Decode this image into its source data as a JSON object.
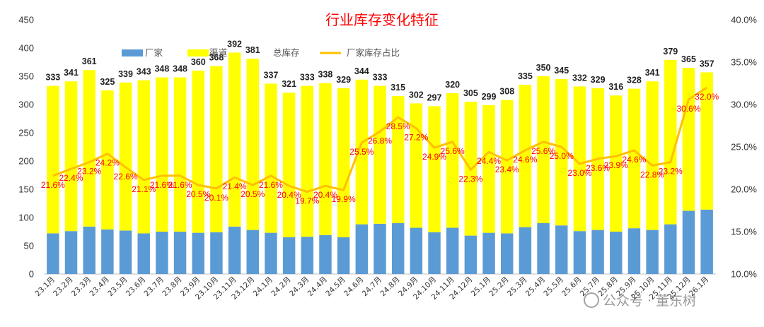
{
  "chart_data": {
    "type": "bar",
    "title": "行业库存变化特征",
    "categories": [
      "23.1月",
      "23.2月",
      "23.3月",
      "23.4月",
      "23.5月",
      "23.6月",
      "23.7月",
      "23.8月",
      "23.9月",
      "23.10月",
      "23.11月",
      "23.12月",
      "24.1月",
      "24.2月",
      "24.3月",
      "24.4月",
      "24.5月",
      "24.6月",
      "24.7月",
      "24.8月",
      "24.9月",
      "24.10月",
      "24.11月",
      "24.12月",
      "25.1月",
      "25.2月",
      "25.3月",
      "25.4月",
      "25.5月",
      "25.6月",
      "25.7月",
      "25.8月",
      "25.9月",
      "25.10月",
      "25.11月",
      "25.12月",
      "26.1月"
    ],
    "series": [
      {
        "name": "厂家",
        "type": "bar",
        "stack": "inventory",
        "color": "#5b9bd5",
        "values": [
          72,
          76,
          84,
          79,
          77,
          72,
          75,
          75,
          73,
          74,
          84,
          78,
          73,
          65,
          66,
          69,
          65,
          88,
          89,
          90,
          82,
          74,
          82,
          68,
          73,
          72,
          83,
          90,
          86,
          76,
          78,
          75,
          81,
          78,
          88,
          112,
          114
        ]
      },
      {
        "name": "渠道",
        "type": "bar",
        "stack": "inventory",
        "color": "#ffff00",
        "values": [
          261,
          265,
          277,
          246,
          262,
          271,
          273,
          273,
          287,
          294,
          308,
          303,
          264,
          256,
          267,
          269,
          264,
          256,
          244,
          225,
          220,
          223,
          238,
          237,
          226,
          236,
          252,
          260,
          259,
          256,
          251,
          241,
          247,
          263,
          291,
          253,
          243
        ]
      },
      {
        "name": "总库存",
        "type": "label",
        "color": "#222222",
        "values": [
          333,
          341,
          361,
          325,
          339,
          343,
          348,
          348,
          360,
          368,
          392,
          381,
          337,
          321,
          333,
          338,
          329,
          344,
          333,
          315,
          302,
          297,
          320,
          305,
          299,
          308,
          335,
          350,
          345,
          332,
          329,
          316,
          328,
          341,
          379,
          365,
          357
        ]
      },
      {
        "name": "厂家库存占比",
        "type": "line",
        "axis": "right",
        "unit": "%",
        "color": "#ffc000",
        "values": [
          21.6,
          22.4,
          23.2,
          24.2,
          22.6,
          21.1,
          21.6,
          21.6,
          20.5,
          20.1,
          21.4,
          20.5,
          21.6,
          20.4,
          19.7,
          20.4,
          19.9,
          25.5,
          26.8,
          28.5,
          27.2,
          24.9,
          25.6,
          22.3,
          24.4,
          23.4,
          24.6,
          25.6,
          25.0,
          23.0,
          23.6,
          23.9,
          24.6,
          22.8,
          23.2,
          30.6,
          32.0
        ]
      }
    ],
    "y_left": {
      "min": 0,
      "max": 450,
      "step": 50,
      "ticks": [
        "0",
        "50",
        "100",
        "150",
        "200",
        "250",
        "300",
        "350",
        "400",
        "450"
      ]
    },
    "y_right": {
      "min": 10,
      "max": 40,
      "step": 5,
      "ticks": [
        "10.0%",
        "15.0%",
        "20.0%",
        "25.0%",
        "30.0%",
        "35.0%",
        "40.0%"
      ]
    },
    "legend": {
      "placement": "top-center",
      "entries": [
        "厂家",
        "渠道",
        "总库存",
        "厂家库存占比"
      ]
    },
    "grid": false
  },
  "watermark": {
    "text": "公众号 · 董东树"
  }
}
